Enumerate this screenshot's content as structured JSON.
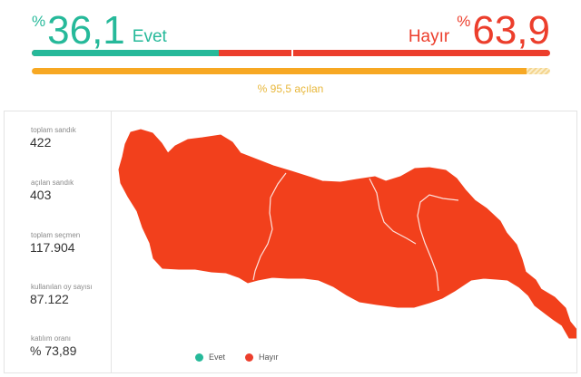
{
  "results": {
    "evet": {
      "percent_sign": "%",
      "value": "36,1",
      "label": "Evet",
      "color": "#26b99a",
      "fraction": 0.361
    },
    "hayir": {
      "percent_sign": "%",
      "value": "63,9",
      "label": "Hayır",
      "color": "#ec3e2c",
      "fraction": 0.639
    }
  },
  "opened": {
    "text": "% 95,5 açılan",
    "fraction": 0.955,
    "color": "#f7a823"
  },
  "stats": [
    {
      "label": "toplam sandık",
      "value": "422"
    },
    {
      "label": "açılan sandık",
      "value": "403"
    },
    {
      "label": "toplam seçmen",
      "value": "117.904"
    },
    {
      "label": "kullanılan oy sayısı",
      "value": "87.122"
    },
    {
      "label": "katılım oranı",
      "value": "% 73,89"
    }
  ],
  "legend": {
    "evet": "Evet",
    "hayir": "Hayır"
  }
}
